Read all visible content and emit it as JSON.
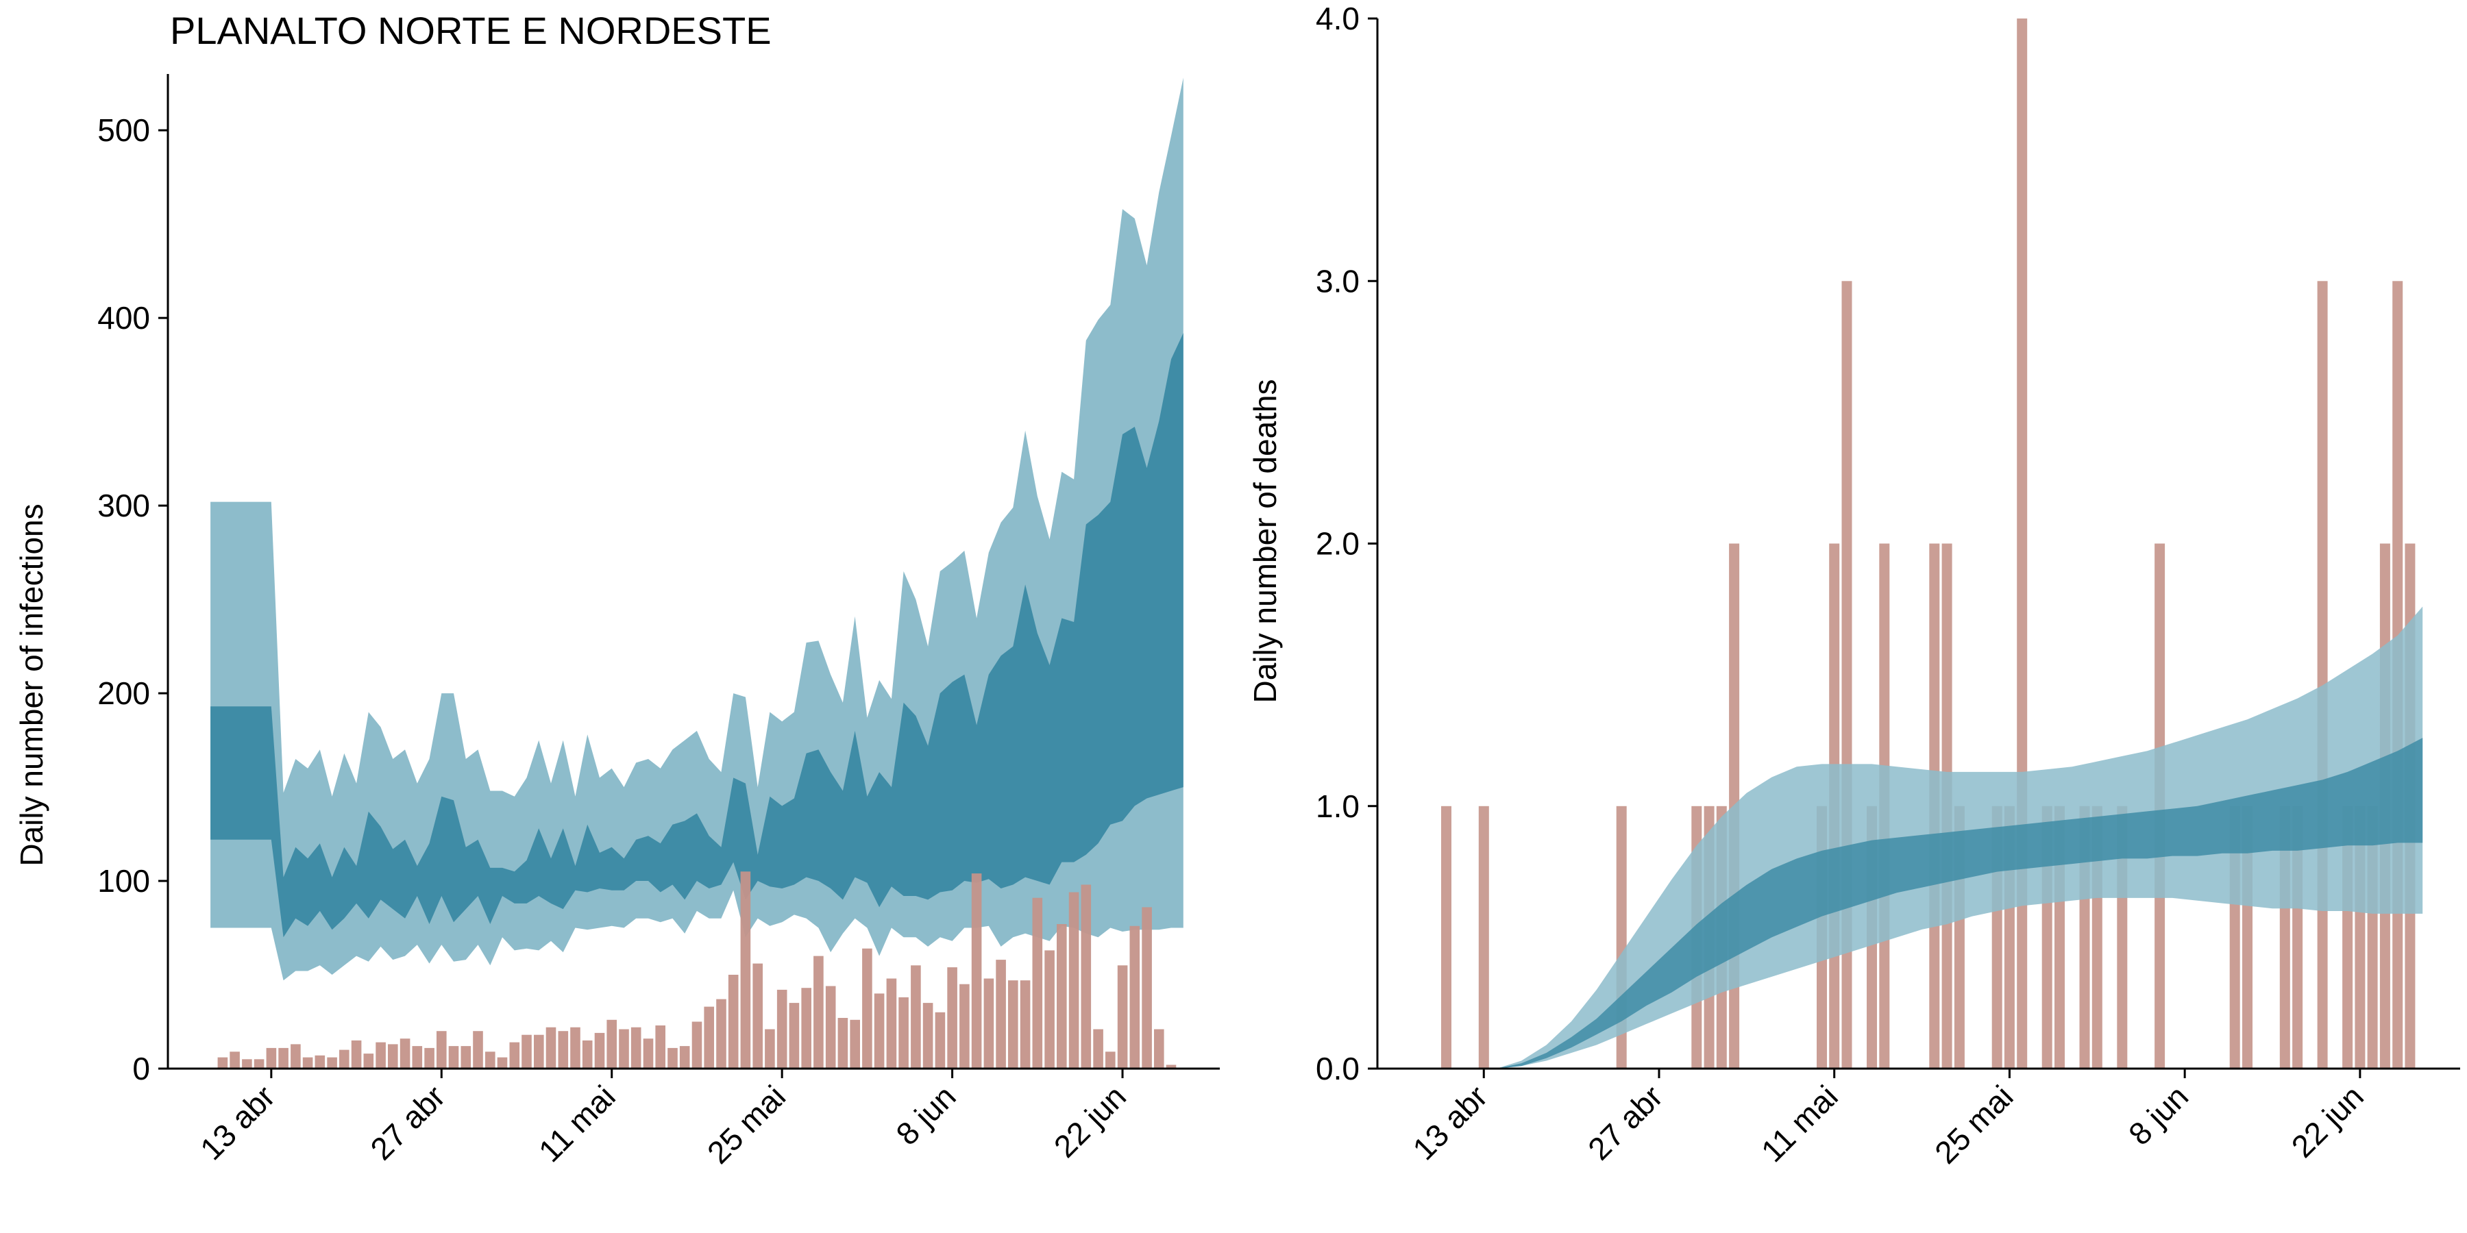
{
  "colors": {
    "observed_bars": "#c4938a",
    "band_outer": "#8dbccb",
    "band_inner": "#3f8ca6",
    "axis": "#000000"
  },
  "chart_data": [
    {
      "type": "area",
      "title": "PLANALTO NORTE E NORDESTE",
      "xlabel": "",
      "ylabel": "Daily number of infections",
      "x_tick_labels": [
        "13 abr",
        "27 abr",
        "11 mai",
        "25 mai",
        "8 jun",
        "22 jun"
      ],
      "x_tick_days": [
        13,
        27,
        41,
        55,
        69,
        83
      ],
      "y_ticks": [
        0,
        100,
        200,
        300,
        400,
        500
      ],
      "ylim": [
        0,
        530
      ],
      "xlim": [
        4.5,
        91
      ],
      "grid": false,
      "x_day_origin": "1 abr",
      "series": [
        {
          "name": "",
          "kind": "bar",
          "x_start_day": 9,
          "values": [
            6,
            9,
            5,
            5,
            11,
            11,
            13,
            6,
            7,
            6,
            10,
            15,
            8,
            14,
            13,
            16,
            12,
            11,
            20,
            12,
            12,
            20,
            9,
            6,
            14,
            18,
            18,
            22,
            20,
            22,
            15,
            19,
            26,
            21,
            22,
            16,
            23,
            11,
            12,
            25,
            33,
            37,
            50,
            105,
            56,
            21,
            42,
            35,
            43,
            60,
            44,
            27,
            26,
            64,
            40,
            48,
            38,
            55,
            35,
            30,
            54,
            45,
            104,
            48,
            58,
            47,
            47,
            91,
            63,
            77,
            94,
            98,
            21,
            9,
            55,
            76,
            86,
            21,
            2
          ],
          "color": "observed_bars"
        },
        {
          "name": "",
          "kind": "band",
          "x_start_day": 8,
          "lower": [
            75,
            75,
            75,
            75,
            75,
            75,
            47,
            52,
            52,
            55,
            50,
            55,
            60,
            57,
            65,
            58,
            60,
            66,
            56,
            66,
            57,
            58,
            66,
            55,
            70,
            63,
            64,
            63,
            68,
            62,
            75,
            74,
            75,
            76,
            75,
            80,
            80,
            78,
            80,
            72,
            84,
            80,
            80,
            95,
            70,
            80,
            76,
            78,
            82,
            80,
            75,
            62,
            72,
            80,
            75,
            60,
            75,
            70,
            70,
            65,
            70,
            68,
            75,
            75,
            76,
            65,
            70,
            72,
            70,
            68,
            76,
            75,
            72,
            70,
            75,
            73,
            74,
            74,
            74,
            75,
            75
          ],
          "upper": [
            302,
            302,
            302,
            302,
            302,
            302,
            147,
            165,
            160,
            170,
            145,
            168,
            152,
            190,
            182,
            165,
            170,
            152,
            165,
            200,
            200,
            165,
            170,
            148,
            148,
            145,
            155,
            175,
            152,
            175,
            145,
            178,
            155,
            160,
            150,
            163,
            165,
            160,
            170,
            175,
            180,
            165,
            158,
            200,
            198,
            150,
            190,
            185,
            190,
            227,
            228,
            210,
            195,
            241,
            187,
            207,
            197,
            265,
            250,
            225,
            265,
            270,
            276,
            240,
            275,
            291,
            299,
            340,
            305,
            282,
            318,
            314,
            388,
            399,
            407,
            458,
            453,
            428,
            467,
            497,
            528
          ],
          "color": "band_outer"
        },
        {
          "name": "",
          "kind": "band",
          "x_start_day": 8,
          "lower": [
            122,
            122,
            122,
            122,
            122,
            122,
            70,
            80,
            76,
            84,
            74,
            80,
            88,
            80,
            90,
            85,
            80,
            92,
            77,
            92,
            78,
            85,
            92,
            77,
            92,
            88,
            88,
            92,
            88,
            85,
            95,
            94,
            96,
            95,
            95,
            100,
            100,
            94,
            98,
            90,
            100,
            96,
            98,
            110,
            90,
            100,
            97,
            96,
            98,
            102,
            100,
            96,
            90,
            102,
            99,
            86,
            97,
            92,
            92,
            90,
            94,
            95,
            100,
            99,
            101,
            96,
            98,
            102,
            100,
            98,
            110,
            110,
            114,
            120,
            130,
            132,
            140,
            144,
            146,
            148,
            150
          ],
          "upper": [
            193,
            193,
            193,
            193,
            193,
            193,
            102,
            118,
            112,
            120,
            102,
            118,
            108,
            137,
            129,
            117,
            122,
            108,
            120,
            145,
            143,
            118,
            122,
            107,
            107,
            105,
            111,
            128,
            112,
            128,
            108,
            130,
            115,
            118,
            112,
            122,
            124,
            120,
            130,
            132,
            136,
            124,
            118,
            155,
            152,
            114,
            145,
            140,
            144,
            168,
            170,
            158,
            148,
            180,
            145,
            158,
            150,
            195,
            188,
            172,
            200,
            206,
            210,
            183,
            210,
            220,
            225,
            258,
            232,
            215,
            240,
            238,
            290,
            295,
            302,
            338,
            342,
            320,
            345,
            378,
            392
          ],
          "color": "band_inner"
        }
      ]
    },
    {
      "type": "area",
      "title": "",
      "xlabel": "",
      "ylabel": "Daily number of deaths",
      "x_tick_labels": [
        "13 abr",
        "27 abr",
        "11 mai",
        "25 mai",
        "8 jun",
        "22 jun"
      ],
      "x_tick_days": [
        13,
        27,
        41,
        55,
        69,
        83
      ],
      "y_ticks": [
        0.0,
        1.0,
        2.0,
        3.0,
        4.0
      ],
      "y_tick_labels": [
        "0.0",
        "1.0",
        "2.0",
        "3.0",
        "4.0"
      ],
      "ylim": [
        0,
        4.0
      ],
      "xlim": [
        4.5,
        91
      ],
      "grid": false,
      "x_day_origin": "1 abr",
      "series": [
        {
          "name": "",
          "kind": "bar",
          "days": [
            10,
            13,
            24,
            30,
            31,
            32,
            33,
            40,
            41,
            42,
            44,
            45,
            49,
            50,
            51,
            54,
            55,
            56,
            58,
            59,
            61,
            62,
            64,
            67,
            73,
            74,
            77,
            78,
            80,
            82,
            83,
            84,
            85,
            86,
            87
          ],
          "values": [
            1,
            1,
            1,
            1,
            1,
            1,
            2,
            1,
            2,
            3,
            1,
            2,
            2,
            2,
            1,
            1,
            1,
            4,
            1,
            1,
            1,
            1,
            1,
            2,
            1,
            1,
            1,
            1,
            3,
            1,
            1,
            1,
            2,
            3,
            2
          ],
          "color": "observed_bars"
        },
        {
          "name": "",
          "kind": "band",
          "x": [
            14,
            16,
            18,
            20,
            22,
            24,
            26,
            28,
            30,
            32,
            34,
            36,
            38,
            40,
            42,
            44,
            46,
            48,
            50,
            52,
            54,
            56,
            58,
            60,
            62,
            64,
            66,
            68,
            70,
            72,
            74,
            76,
            78,
            80,
            82,
            84,
            86,
            88
          ],
          "lower": [
            0,
            0.01,
            0.03,
            0.06,
            0.09,
            0.13,
            0.17,
            0.21,
            0.25,
            0.29,
            0.32,
            0.35,
            0.38,
            0.41,
            0.44,
            0.47,
            0.5,
            0.53,
            0.55,
            0.58,
            0.6,
            0.62,
            0.63,
            0.64,
            0.65,
            0.65,
            0.65,
            0.65,
            0.64,
            0.63,
            0.62,
            0.61,
            0.61,
            0.6,
            0.6,
            0.59,
            0.59,
            0.59
          ],
          "upper": [
            0,
            0.03,
            0.09,
            0.18,
            0.3,
            0.44,
            0.58,
            0.72,
            0.85,
            0.96,
            1.05,
            1.11,
            1.15,
            1.16,
            1.16,
            1.16,
            1.15,
            1.14,
            1.13,
            1.13,
            1.13,
            1.13,
            1.14,
            1.15,
            1.17,
            1.19,
            1.21,
            1.24,
            1.27,
            1.3,
            1.33,
            1.37,
            1.41,
            1.46,
            1.52,
            1.58,
            1.65,
            1.76
          ],
          "color": "band_outer"
        },
        {
          "name": "",
          "kind": "band",
          "x": [
            14,
            16,
            18,
            20,
            22,
            24,
            26,
            28,
            30,
            32,
            34,
            36,
            38,
            40,
            42,
            44,
            46,
            48,
            50,
            52,
            54,
            56,
            58,
            60,
            62,
            64,
            66,
            68,
            70,
            72,
            74,
            76,
            78,
            80,
            82,
            84,
            86,
            88
          ],
          "lower": [
            0,
            0.01,
            0.04,
            0.08,
            0.13,
            0.18,
            0.24,
            0.29,
            0.35,
            0.4,
            0.45,
            0.5,
            0.54,
            0.58,
            0.61,
            0.64,
            0.67,
            0.69,
            0.71,
            0.73,
            0.75,
            0.76,
            0.77,
            0.78,
            0.79,
            0.8,
            0.8,
            0.81,
            0.81,
            0.82,
            0.82,
            0.83,
            0.83,
            0.84,
            0.85,
            0.85,
            0.86,
            0.86
          ],
          "upper": [
            0,
            0.02,
            0.06,
            0.12,
            0.19,
            0.28,
            0.37,
            0.46,
            0.55,
            0.63,
            0.7,
            0.76,
            0.8,
            0.83,
            0.85,
            0.87,
            0.88,
            0.89,
            0.9,
            0.91,
            0.92,
            0.93,
            0.94,
            0.95,
            0.96,
            0.97,
            0.98,
            0.99,
            1.0,
            1.02,
            1.04,
            1.06,
            1.08,
            1.1,
            1.13,
            1.17,
            1.21,
            1.26
          ],
          "color": "band_inner"
        }
      ]
    }
  ]
}
